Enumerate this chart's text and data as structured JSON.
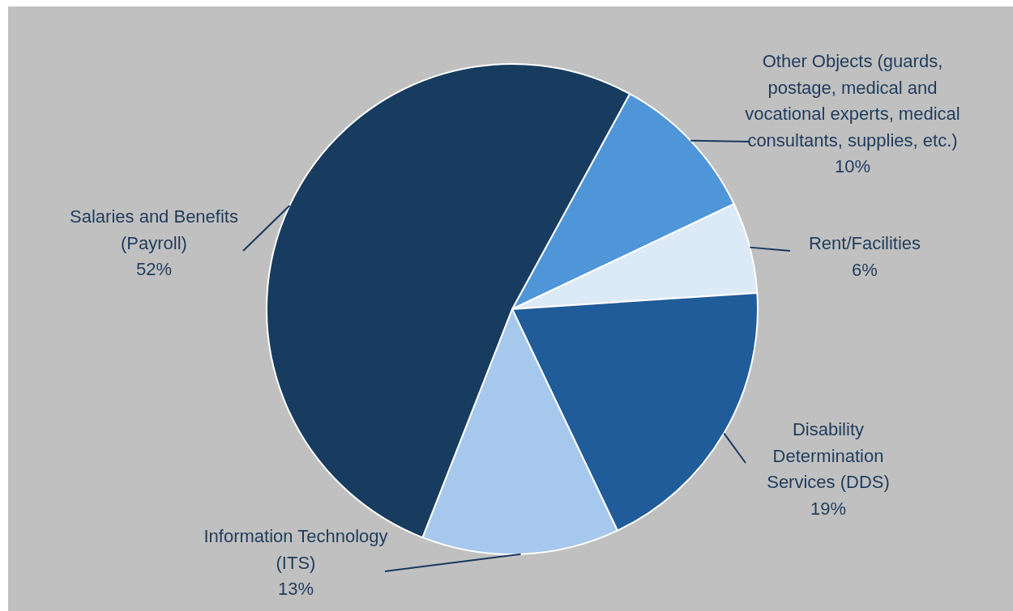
{
  "chart_data": {
    "type": "pie",
    "categories": [
      "Other Objects (guards, postage, medical and vocational experts, medical consultants, supplies, etc.)",
      "Rent/Facilities",
      "Disability Determination Services (DDS)",
      "Information Technology (ITS)",
      "Salaries and Benefits (Payroll)"
    ],
    "values": [
      10,
      6,
      19,
      13,
      52
    ],
    "colors": [
      "#4f96d8",
      "#dce9f6",
      "#1f5c99",
      "#a6c8ec",
      "#173c5f"
    ],
    "value_labels": [
      "10%",
      "6%",
      "19%",
      "13%",
      "52%"
    ]
  }
}
